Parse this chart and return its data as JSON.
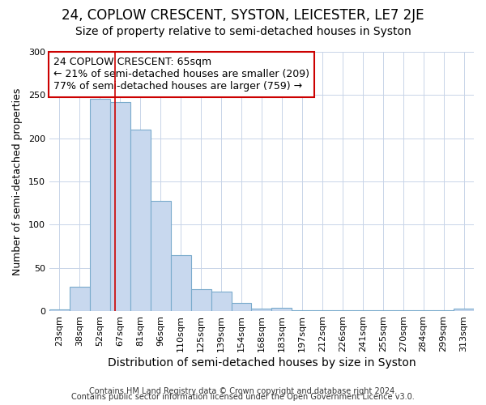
{
  "title": "24, COPLOW CRESCENT, SYSTON, LEICESTER, LE7 2JE",
  "subtitle": "Size of property relative to semi-detached houses in Syston",
  "xlabel": "Distribution of semi-detached houses by size in Syston",
  "ylabel": "Number of semi-detached properties",
  "categories": [
    "23sqm",
    "38sqm",
    "52sqm",
    "67sqm",
    "81sqm",
    "96sqm",
    "110sqm",
    "125sqm",
    "139sqm",
    "154sqm",
    "168sqm",
    "183sqm",
    "197sqm",
    "212sqm",
    "226sqm",
    "241sqm",
    "255sqm",
    "270sqm",
    "284sqm",
    "299sqm",
    "313sqm"
  ],
  "values": [
    2,
    28,
    246,
    242,
    210,
    128,
    65,
    25,
    23,
    9,
    3,
    4,
    1,
    1,
    1,
    1,
    1,
    1,
    1,
    1,
    3
  ],
  "bar_color": "#c8d8ee",
  "bar_edge_color": "#7aabcc",
  "grid_color": "#c8d4e8",
  "bg_color": "#ffffff",
  "annotation_text": "24 COPLOW CRESCENT: 65sqm\n← 21% of semi-detached houses are smaller (209)\n77% of semi-detached houses are larger (759) →",
  "annotation_box_color": "#ffffff",
  "annotation_box_edge": "#cc0000",
  "vline_x": 2.75,
  "vline_color": "#cc0000",
  "footer1": "Contains HM Land Registry data © Crown copyright and database right 2024.",
  "footer2": "Contains public sector information licensed under the Open Government Licence v3.0.",
  "ylim": [
    0,
    300
  ],
  "yticks": [
    0,
    50,
    100,
    150,
    200,
    250,
    300
  ],
  "title_fontsize": 12,
  "subtitle_fontsize": 10,
  "xlabel_fontsize": 10,
  "ylabel_fontsize": 9,
  "tick_fontsize": 8,
  "annotation_fontsize": 9,
  "footer_fontsize": 7
}
